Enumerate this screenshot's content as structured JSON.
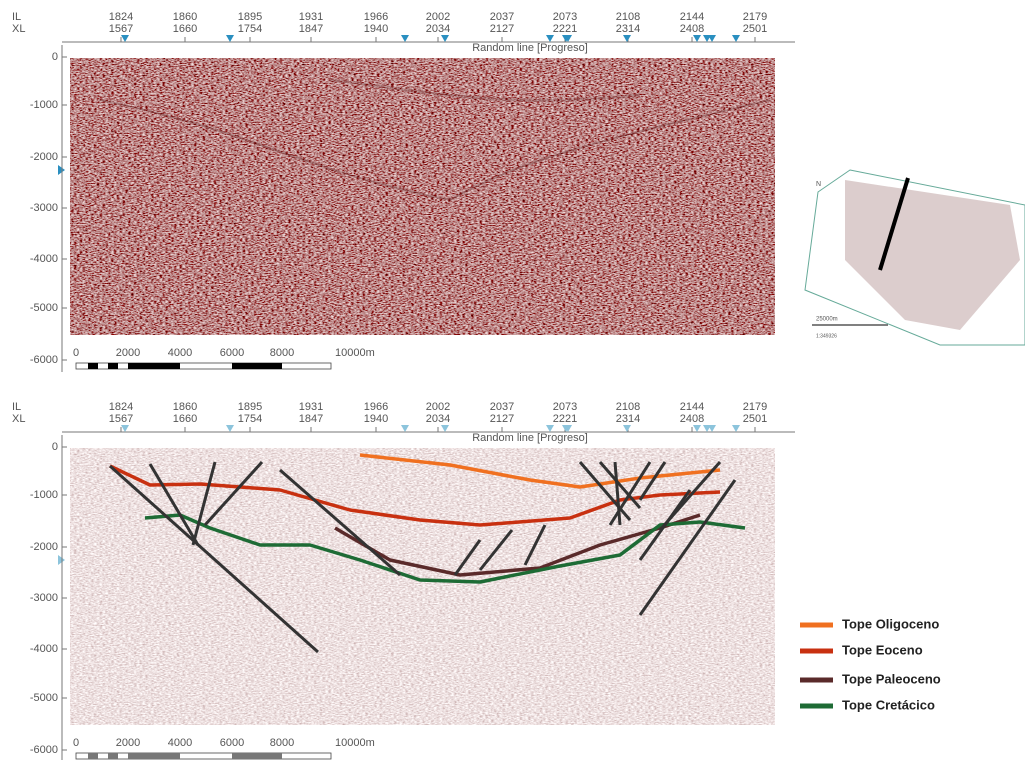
{
  "panels": [
    {
      "il_label": "IL",
      "xl_label": "XL",
      "il": [
        "1824",
        "1860",
        "1895",
        "1931",
        "1966",
        "2002",
        "2037",
        "2073",
        "2108",
        "2144",
        "2179"
      ],
      "xl": [
        "1567",
        "1660",
        "1754",
        "1847",
        "1940",
        "2034",
        "2127",
        "2221",
        "2314",
        "2408",
        "2501"
      ],
      "title": "Random line [Progreso]",
      "depths": [
        "0",
        "-1000",
        "-2000",
        "-3000",
        "-4000",
        "-5000",
        "-6000"
      ],
      "scale": [
        "0",
        "2000",
        "4000",
        "6000",
        "8000",
        "10000m"
      ]
    },
    {
      "il_label": "IL",
      "xl_label": "XL",
      "il": [
        "1824",
        "1860",
        "1895",
        "1931",
        "1966",
        "2002",
        "2037",
        "2073",
        "2108",
        "2144",
        "2179"
      ],
      "xl": [
        "1567",
        "1660",
        "1754",
        "1847",
        "1940",
        "2034",
        "2127",
        "2221",
        "2314",
        "2408",
        "2501"
      ],
      "title": "Random line [Progreso]",
      "depths": [
        "0",
        "-1000",
        "-2000",
        "-3000",
        "-4000",
        "-5000",
        "-6000"
      ],
      "scale": [
        "0",
        "2000",
        "4000",
        "6000",
        "8000",
        "10000m"
      ]
    }
  ],
  "map": {
    "north": "N",
    "scale_label": "25000m",
    "ratio": "1:349326"
  },
  "legend": [
    "Tope Oligoceno",
    "Tope Eoceno",
    "Tope Paleoceno",
    "Tope Cretácico"
  ]
}
